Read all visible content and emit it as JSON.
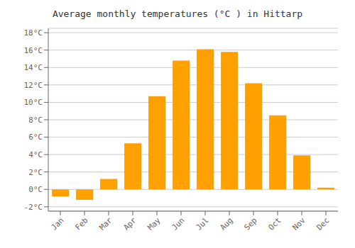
{
  "chart_data": {
    "type": "bar",
    "title": "Average monthly temperatures (°C ) in Hittarp",
    "categories": [
      "Jan",
      "Feb",
      "Mar",
      "Apr",
      "May",
      "Jun",
      "Jul",
      "Aug",
      "Sep",
      "Oct",
      "Nov",
      "Dec"
    ],
    "values": [
      -0.8,
      -1.2,
      1.2,
      5.3,
      10.7,
      14.8,
      16.1,
      15.8,
      12.2,
      8.5,
      3.9,
      0.2
    ],
    "color": "#FFA000",
    "ylim": [
      -2.5,
      18.5
    ],
    "yticks": [
      {
        "value": -2,
        "label": "-2°C"
      },
      {
        "value": 0,
        "label": "0°C"
      },
      {
        "value": 2,
        "label": "2°C"
      },
      {
        "value": 4,
        "label": "4°C"
      },
      {
        "value": 6,
        "label": "6°C"
      },
      {
        "value": 8,
        "label": "8°C"
      },
      {
        "value": 10,
        "label": "10°C"
      },
      {
        "value": 12,
        "label": "12°C"
      },
      {
        "value": 14,
        "label": "14°C"
      },
      {
        "value": 16,
        "label": "16°C"
      },
      {
        "value": 18,
        "label": "18°C"
      }
    ],
    "grid": true
  }
}
